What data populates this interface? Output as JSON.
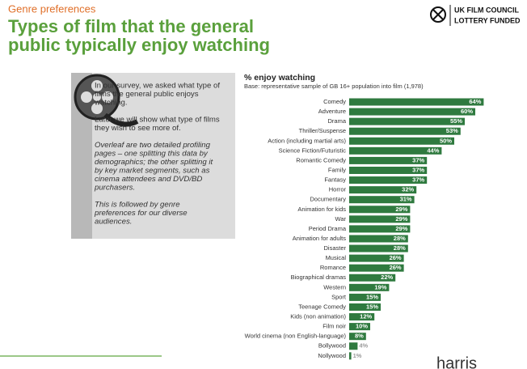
{
  "header": {
    "section": "Genre preferences",
    "title": [
      "Types of film that the general",
      "public typically enjoy watching"
    ]
  },
  "logo": {
    "lines": [
      "UK FILM COUNCIL",
      "LOTTERY FUNDED"
    ]
  },
  "sidebar": {
    "paragraphs": [
      {
        "style": "normal",
        "lines": [
          "In our survey, we asked what type of",
          "films the general public enjoys",
          "watching."
        ]
      },
      {
        "style": "normal",
        "lines": [
          "Later we will show what type of films",
          "they wish to see more of."
        ]
      },
      {
        "style": "italic",
        "lines": [
          "Overleaf are two detailed profiling",
          "pages – one splitting this data by",
          "demographics; the other splitting it",
          "by key market segments, such as",
          "cinema attendees and DVD/BD",
          "purchasers."
        ]
      },
      {
        "style": "italic",
        "lines": [
          "This is followed by genre",
          "preferences for our diverse",
          "audiences."
        ]
      }
    ]
  },
  "footer": {
    "brand": "harris"
  },
  "chart_data": {
    "type": "bar",
    "orientation": "horizontal",
    "title": "% enjoy watching",
    "subtitle": "Base: representative sample of GB 16+ population into film (1,978)",
    "color": "#2f7a3f",
    "categories": [
      "Comedy",
      "Adventure",
      "Drama",
      "Thriller/Suspense",
      "Action (including martial arts)",
      "Science Fiction/Futuristic",
      "Romantic Comedy",
      "Family",
      "Fantasy",
      "Horror",
      "Documentary",
      "Animation for kids",
      "War",
      "Period Drama",
      "Animation for adults",
      "Disaster",
      "Musical",
      "Romance",
      "Biographical dramas",
      "Western",
      "Sport",
      "Teenage Comedy",
      "Kids (non animation)",
      "Film noir",
      "World cinema (non English-language)",
      "Bollywood",
      "Nollywood"
    ],
    "values": [
      64,
      60,
      55,
      53,
      50,
      44,
      37,
      37,
      37,
      32,
      31,
      29,
      29,
      29,
      28,
      28,
      26,
      26,
      22,
      19,
      15,
      15,
      12,
      10,
      8,
      4,
      1
    ],
    "value_labels": [
      "64%",
      "60%",
      "55%",
      "53%",
      "50%",
      "44%",
      "37%",
      "37%",
      "37%",
      "32%",
      "31%",
      "29%",
      "29%",
      "29%",
      "28%",
      "28%",
      "26%",
      "26%",
      "22%",
      "19%",
      "15%",
      "15%",
      "12%",
      "10%",
      "8%",
      "4%",
      "1%"
    ]
  }
}
